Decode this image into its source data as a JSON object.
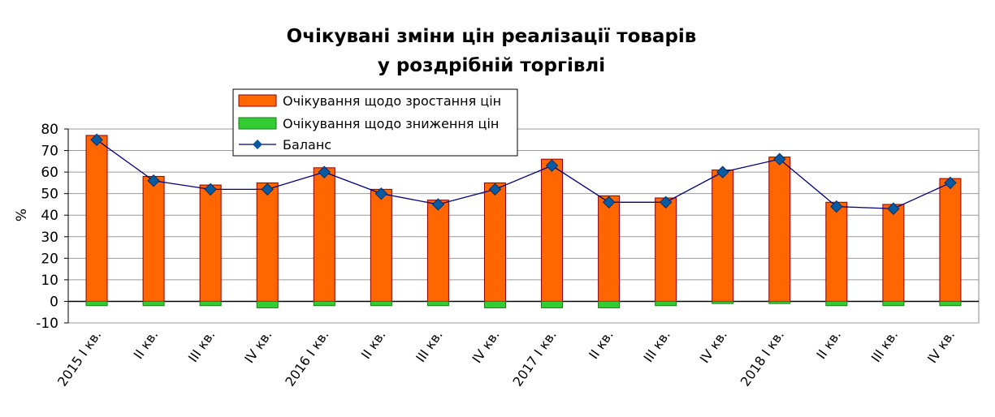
{
  "chart_data": {
    "type": "bar",
    "title": [
      "Очікувані зміни цін реалізації товарів",
      "у роздрібній торгівлі"
    ],
    "ylabel": "%",
    "ylim": [
      -10,
      80
    ],
    "yticks": [
      -10,
      0,
      10,
      20,
      30,
      40,
      50,
      60,
      70,
      80
    ],
    "grid": true,
    "legend_position": "top-center",
    "categories": [
      "2015 І кв.",
      "ІІ кв.",
      "ІІІ кв.",
      "ІV кв.",
      "2016 І кв.",
      "ІІ кв.",
      "ІІІ кв.",
      "ІV кв.",
      "2017 І кв.",
      "ІІ кв.",
      "ІІІ кв.",
      "ІV кв.",
      "2018 І кв.",
      "ІІ кв.",
      "ІІІ кв.",
      "ІV кв."
    ],
    "series": [
      {
        "name": "Очікування щодо зростання цін",
        "type": "bar",
        "color": "#ff6600",
        "values": [
          77,
          58,
          54,
          55,
          62,
          52,
          47,
          55,
          66,
          49,
          48,
          61,
          67,
          46,
          45,
          57
        ]
      },
      {
        "name": "Очікування щодо зниження цін",
        "type": "bar",
        "color": "#33cc33",
        "values": [
          -2,
          -2,
          -2,
          -3,
          -2,
          -2,
          -2,
          -3,
          -3,
          -3,
          -2,
          -1,
          -1,
          -2,
          -2,
          -2
        ]
      },
      {
        "name": "Баланс",
        "type": "line",
        "color": "#000080",
        "marker_color": "#0a5aa0",
        "values": [
          75,
          56,
          52,
          52,
          60,
          50,
          45,
          52,
          63,
          46,
          46,
          60,
          66,
          44,
          43,
          55
        ]
      }
    ]
  }
}
